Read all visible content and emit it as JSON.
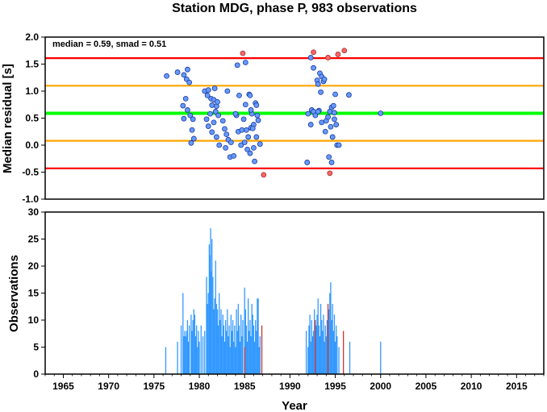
{
  "colors": {
    "accent_red": "#ff0000",
    "accent_orange": "#ffa500",
    "accent_green": "#00ff00",
    "point_fill": "#6699ff",
    "outlier_fill": "#ff6666",
    "bar_fill": "#3399ff",
    "bar_alt_fill": "#cc3333"
  },
  "chart_data": [
    {
      "type": "scatter",
      "title": "Station MDG, phase P, 983 observations",
      "annotation": "median = 0.59, smad = 0.51",
      "ylabel": "Median residual [s]",
      "xlim": [
        1963,
        2018
      ],
      "ylim": [
        -1.0,
        2.0
      ],
      "y_ticks": [
        "-1.0",
        "-0.5",
        "0.0",
        "0.5",
        "1.0",
        "1.5",
        "2.0"
      ],
      "grid": false,
      "reference_lines": [
        {
          "name": "median",
          "y": 0.59,
          "color": "#00ff00"
        },
        {
          "name": "median + 1 smad",
          "y": 1.1,
          "color": "#ffa500"
        },
        {
          "name": "median - 1 smad",
          "y": 0.08,
          "color": "#ffa500"
        },
        {
          "name": "median + 2 smad",
          "y": 1.61,
          "color": "#ff0000"
        },
        {
          "name": "median - 2 smad",
          "y": -0.43,
          "color": "#ff0000"
        }
      ],
      "points": [
        [
          1976.4,
          1.28
        ],
        [
          1977.6,
          1.35
        ],
        [
          1978.3,
          1.3
        ],
        [
          1978.6,
          1.22
        ],
        [
          1978.7,
          1.4
        ],
        [
          1978.9,
          1.16
        ],
        [
          1978.2,
          0.73
        ],
        [
          1978.5,
          0.86
        ],
        [
          1978.7,
          0.65
        ],
        [
          1978.3,
          0.49
        ],
        [
          1979.0,
          0.55
        ],
        [
          1979.3,
          0.48
        ],
        [
          1979.2,
          0.28
        ],
        [
          1979.4,
          0.12
        ],
        [
          1979.1,
          0.04
        ],
        [
          1980.6,
          1.0
        ],
        [
          1980.9,
          0.92
        ],
        [
          1981.0,
          1.02
        ],
        [
          1981.3,
          0.86
        ],
        [
          1981.6,
          0.84
        ],
        [
          1981.7,
          1.05
        ],
        [
          1981.4,
          0.74
        ],
        [
          1981.9,
          0.72
        ],
        [
          1982.0,
          0.8
        ],
        [
          1981.8,
          0.62
        ],
        [
          1982.1,
          0.55
        ],
        [
          1981.2,
          0.58
        ],
        [
          1980.8,
          0.48
        ],
        [
          1981.0,
          0.35
        ],
        [
          1981.4,
          0.24
        ],
        [
          1981.9,
          0.15
        ],
        [
          1981.6,
          0.42
        ],
        [
          1982.2,
          0.0
        ],
        [
          1982.6,
          0.45
        ],
        [
          1982.8,
          0.3
        ],
        [
          1983.0,
          0.2
        ],
        [
          1983.2,
          0.1
        ],
        [
          1982.9,
          -0.05
        ],
        [
          1983.4,
          -0.22
        ],
        [
          1983.8,
          -0.2
        ],
        [
          1983.5,
          0.05
        ],
        [
          1983.1,
          1.0
        ],
        [
          1984.2,
          1.48
        ],
        [
          1984.4,
          0.92
        ],
        [
          1984.1,
          0.55
        ],
        [
          1984.3,
          0.25
        ],
        [
          1984.0,
          0.58
        ],
        [
          1984.6,
          0.0
        ],
        [
          1984.7,
          0.28
        ],
        [
          1984.9,
          0.48
        ],
        [
          1985.0,
          0.05
        ],
        [
          1985.1,
          0.75
        ],
        [
          1985.1,
          1.53
        ],
        [
          1985.5,
          0.94
        ],
        [
          1985.6,
          0.92
        ],
        [
          1985.2,
          0.28
        ],
        [
          1985.4,
          0.15
        ],
        [
          1985.8,
          0.58
        ],
        [
          1985.7,
          0.32
        ],
        [
          1986.0,
          0.38
        ],
        [
          1986.2,
          0.78
        ],
        [
          1985.7,
          0.65
        ],
        [
          1985.9,
          0.31
        ],
        [
          1985.6,
          -0.15
        ],
        [
          1986.0,
          -0.05
        ],
        [
          1986.3,
          0.74
        ],
        [
          1986.4,
          0.55
        ],
        [
          1986.5,
          0.46
        ],
        [
          1986.7,
          0.02
        ],
        [
          1986.1,
          -0.3
        ],
        [
          1986.3,
          0.15
        ],
        [
          1985.3,
          -0.08
        ],
        [
          1992.0,
          0.58
        ],
        [
          1991.9,
          -0.32
        ],
        [
          1992.3,
          0.38
        ],
        [
          1992.4,
          0.65
        ],
        [
          1992.6,
          0.62
        ],
        [
          1992.8,
          0.55
        ],
        [
          1992.3,
          1.62
        ],
        [
          1992.6,
          1.43
        ],
        [
          1993.0,
          1.2
        ],
        [
          1993.1,
          1.13
        ],
        [
          1993.3,
          1.33
        ],
        [
          1993.4,
          0.98
        ],
        [
          1993.5,
          1.27
        ],
        [
          1993.7,
          1.18
        ],
        [
          1993.8,
          1.22
        ],
        [
          1993.2,
          0.64
        ],
        [
          1993.1,
          0.62
        ],
        [
          1993.5,
          0.42
        ],
        [
          1994.0,
          0.45
        ],
        [
          1993.9,
          0.25
        ],
        [
          1994.2,
          0.52
        ],
        [
          1994.4,
          0.62
        ],
        [
          1994.6,
          0.7
        ],
        [
          1994.8,
          0.73
        ],
        [
          1995.0,
          0.94
        ],
        [
          1994.5,
          0.34
        ],
        [
          1994.7,
          0.15
        ],
        [
          1994.9,
          0.48
        ],
        [
          1995.1,
          0.38
        ],
        [
          1995.2,
          0.0
        ],
        [
          1995.4,
          0.0
        ],
        [
          1994.3,
          -0.22
        ],
        [
          1994.6,
          -0.32
        ],
        [
          1994.9,
          0.6
        ],
        [
          1996.5,
          0.93
        ],
        [
          2000.0,
          0.59
        ]
      ],
      "outliers": [
        [
          1984.8,
          1.7
        ],
        [
          1987.1,
          -0.55
        ],
        [
          1992.6,
          1.72
        ],
        [
          1994.2,
          1.62
        ],
        [
          1995.3,
          1.68
        ],
        [
          1996.0,
          1.75
        ],
        [
          1994.4,
          -0.52
        ]
      ]
    },
    {
      "type": "bar",
      "ylabel": "Observations",
      "xlabel": "Year",
      "xlim": [
        1963,
        2018
      ],
      "ylim": [
        0,
        30
      ],
      "y_ticks": [
        "0",
        "5",
        "10",
        "15",
        "20",
        "25",
        "30"
      ],
      "x_ticks": [
        "1965",
        "1970",
        "1975",
        "1980",
        "1985",
        "1990",
        "1995",
        "2000",
        "2005",
        "2010",
        "2015"
      ],
      "grid": false,
      "bars": [
        [
          1976.3,
          5
        ],
        [
          1977.6,
          6
        ],
        [
          1978.0,
          9
        ],
        [
          1978.2,
          15
        ],
        [
          1978.3,
          7
        ],
        [
          1978.4,
          8
        ],
        [
          1978.5,
          7
        ],
        [
          1978.6,
          8
        ],
        [
          1978.7,
          10
        ],
        [
          1978.8,
          6
        ],
        [
          1978.9,
          9
        ],
        [
          1979.1,
          11
        ],
        [
          1979.2,
          8
        ],
        [
          1979.3,
          10
        ],
        [
          1979.4,
          12
        ],
        [
          1979.5,
          11
        ],
        [
          1979.6,
          7
        ],
        [
          1979.7,
          9
        ],
        [
          1979.8,
          5
        ],
        [
          1979.9,
          8
        ],
        [
          1980.0,
          6
        ],
        [
          1980.2,
          9
        ],
        [
          1980.4,
          7
        ],
        [
          1980.6,
          8
        ],
        [
          1980.8,
          18
        ],
        [
          1980.9,
          13
        ],
        [
          1981.0,
          15
        ],
        [
          1981.1,
          24
        ],
        [
          1981.15,
          22
        ],
        [
          1981.25,
          27
        ],
        [
          1981.3,
          19
        ],
        [
          1981.4,
          25
        ],
        [
          1981.5,
          18
        ],
        [
          1981.6,
          12
        ],
        [
          1981.7,
          14
        ],
        [
          1981.8,
          21
        ],
        [
          1981.9,
          13
        ],
        [
          1982.0,
          12
        ],
        [
          1982.1,
          9
        ],
        [
          1982.2,
          15
        ],
        [
          1982.3,
          10
        ],
        [
          1982.4,
          12
        ],
        [
          1982.5,
          7
        ],
        [
          1982.6,
          11
        ],
        [
          1982.7,
          9
        ],
        [
          1982.8,
          6
        ],
        [
          1982.9,
          10
        ],
        [
          1983.0,
          8
        ],
        [
          1983.1,
          12
        ],
        [
          1983.2,
          7
        ],
        [
          1983.3,
          9
        ],
        [
          1983.4,
          5
        ],
        [
          1983.5,
          11
        ],
        [
          1983.6,
          8
        ],
        [
          1983.7,
          10
        ],
        [
          1983.8,
          6
        ],
        [
          1983.9,
          9
        ],
        [
          1984.0,
          5
        ],
        [
          1984.1,
          12
        ],
        [
          1984.2,
          8
        ],
        [
          1984.3,
          13
        ],
        [
          1984.4,
          9
        ],
        [
          1984.5,
          6
        ],
        [
          1984.6,
          11
        ],
        [
          1984.7,
          7
        ],
        [
          1984.8,
          10
        ],
        [
          1985.0,
          16
        ],
        [
          1985.1,
          12
        ],
        [
          1985.2,
          9
        ],
        [
          1985.3,
          6
        ],
        [
          1985.4,
          14
        ],
        [
          1985.5,
          8
        ],
        [
          1985.6,
          10
        ],
        [
          1985.7,
          7
        ],
        [
          1985.8,
          13
        ],
        [
          1985.9,
          11
        ],
        [
          1986.0,
          9
        ],
        [
          1986.1,
          6
        ],
        [
          1986.2,
          10
        ],
        [
          1986.3,
          8
        ],
        [
          1986.4,
          14
        ],
        [
          1986.5,
          14
        ],
        [
          1986.6,
          5
        ],
        [
          1986.7,
          7
        ],
        [
          1991.8,
          8
        ],
        [
          1992.0,
          5
        ],
        [
          1992.1,
          9
        ],
        [
          1992.2,
          11
        ],
        [
          1992.3,
          6
        ],
        [
          1992.4,
          10
        ],
        [
          1992.5,
          7
        ],
        [
          1992.6,
          8
        ],
        [
          1992.7,
          12
        ],
        [
          1992.8,
          6
        ],
        [
          1992.9,
          9
        ],
        [
          1993.0,
          11
        ],
        [
          1993.1,
          14
        ],
        [
          1993.2,
          9
        ],
        [
          1993.3,
          7
        ],
        [
          1993.4,
          13
        ],
        [
          1993.5,
          10
        ],
        [
          1993.6,
          8
        ],
        [
          1993.7,
          11
        ],
        [
          1993.8,
          6
        ],
        [
          1993.9,
          9
        ],
        [
          1994.0,
          7
        ],
        [
          1994.1,
          10
        ],
        [
          1994.3,
          12
        ],
        [
          1994.4,
          15
        ],
        [
          1994.5,
          17
        ],
        [
          1994.6,
          10
        ],
        [
          1994.7,
          13
        ],
        [
          1994.8,
          8
        ],
        [
          1994.9,
          11
        ],
        [
          1995.0,
          6
        ],
        [
          1995.1,
          9
        ],
        [
          1995.2,
          7
        ],
        [
          1995.4,
          5
        ],
        [
          1996.6,
          6
        ],
        [
          2000.0,
          6
        ]
      ],
      "bars_alt": [
        [
          1985.0,
          5
        ],
        [
          1986.9,
          9
        ],
        [
          1992.8,
          10
        ],
        [
          1994.2,
          13
        ],
        [
          1995.9,
          8
        ]
      ]
    }
  ]
}
